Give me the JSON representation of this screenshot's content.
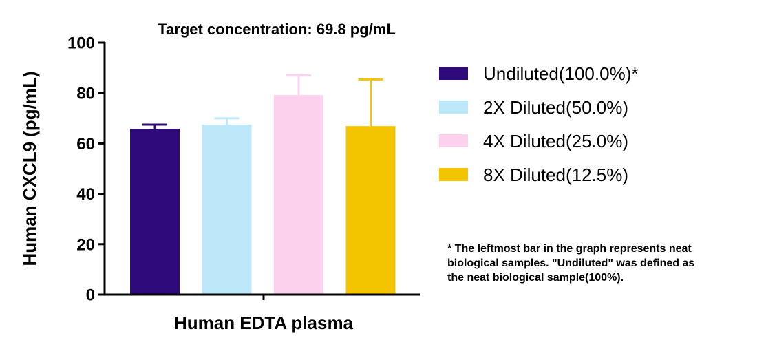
{
  "chart_data": {
    "type": "bar",
    "title": "Target concentration: 69.8 pg/mL",
    "xlabel": "Human EDTA plasma",
    "ylabel": "Human CXCL9 (pg/mL)",
    "ylim": [
      0,
      100
    ],
    "yticks": [
      "0",
      "20",
      "40",
      "60",
      "80",
      "100"
    ],
    "grid": false,
    "legend_position": "right",
    "series": [
      {
        "name": "Undiluted(100.0%)*",
        "value": 65.8,
        "error": 1.7,
        "color": "#2e0a7a"
      },
      {
        "name": "2X Diluted(50.0%)",
        "value": 67.5,
        "error": 2.5,
        "color": "#bde8fa"
      },
      {
        "name": "4X Diluted(25.0%)",
        "value": 79.2,
        "error": 7.8,
        "color": "#fcd1ee"
      },
      {
        "name": "8X Diluted(12.5%)",
        "value": 66.9,
        "error": 18.5,
        "color": "#f2c500"
      }
    ]
  },
  "note": {
    "lines": [
      "* The leftmost bar in the graph represents neat",
      "biological samples. \"Undiluted\" was defined as",
      "the neat biological sample(100%)."
    ]
  }
}
